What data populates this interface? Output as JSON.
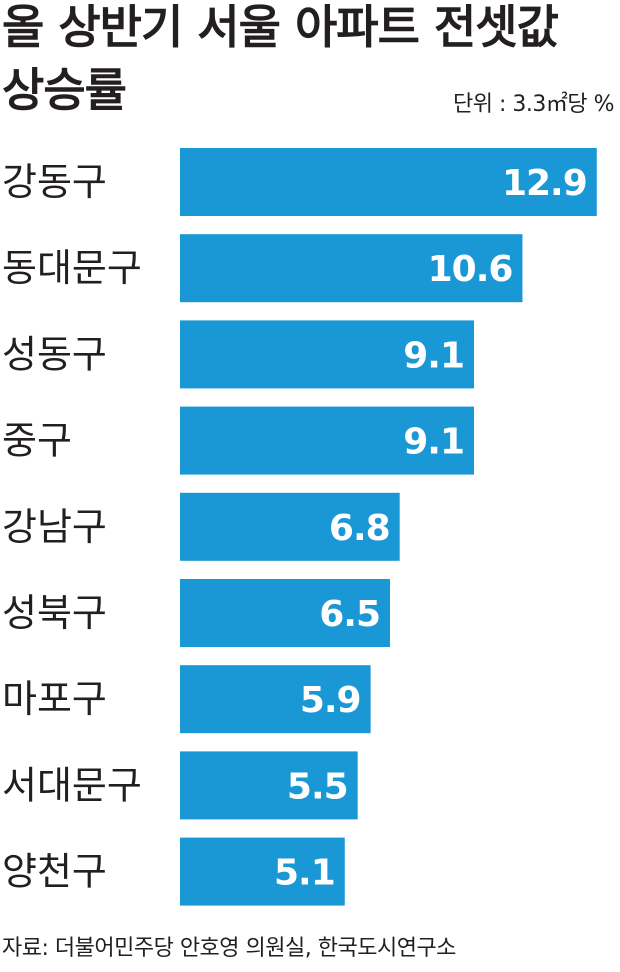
{
  "header": {
    "title_line1": "올 상반기 서울 아파트 전셋값",
    "title_line2": "상승률",
    "unit": "단위 : 3.3㎡당 %"
  },
  "chart_data": {
    "type": "bar",
    "orientation": "horizontal",
    "title": "올 상반기 서울 아파트 전셋값 상승률",
    "unit": "단위 : 3.3㎡당 %",
    "categories": [
      "강동구",
      "동대문구",
      "성동구",
      "중구",
      "강남구",
      "성북구",
      "마포구",
      "서대문구",
      "양천구"
    ],
    "values": [
      12.9,
      10.6,
      9.1,
      9.1,
      6.8,
      6.5,
      5.9,
      5.5,
      5.1
    ],
    "value_labels": [
      "12.9",
      "10.6",
      "9.1",
      "9.1",
      "6.8",
      "6.5",
      "5.9",
      "5.5",
      "5.1"
    ],
    "xlim": [
      0,
      13.0
    ],
    "grid": false,
    "legend": "none",
    "colors": {
      "bar": "#1a98d5",
      "value_text": "#ffffff",
      "text": "#231f20"
    }
  },
  "footer": {
    "source": "자료: 더불어민주당 안호영 의원실, 한국도시연구소"
  }
}
